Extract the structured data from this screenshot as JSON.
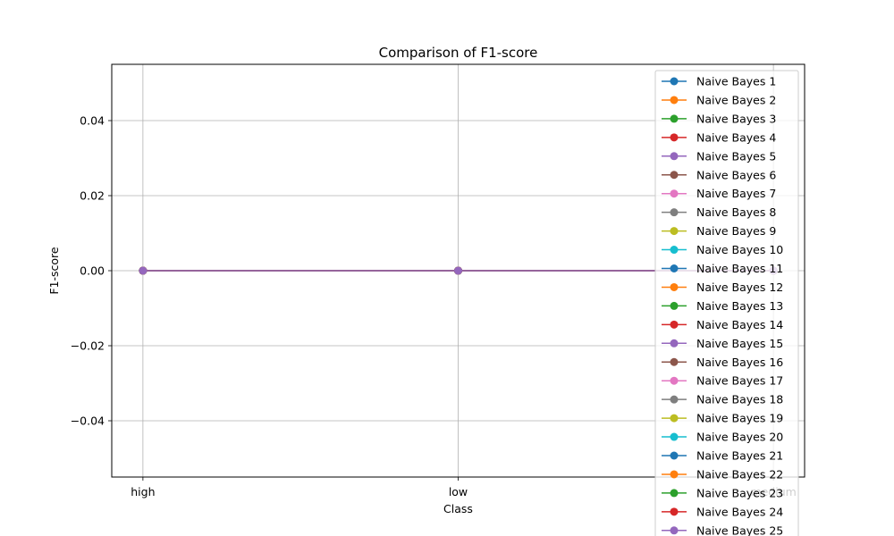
{
  "chart_data": {
    "type": "line",
    "title": "Comparison of F1-score",
    "xlabel": "Class",
    "ylabel": "F1-score",
    "categories": [
      "high",
      "low",
      "medium"
    ],
    "ylim": [
      -0.055,
      0.055
    ],
    "yticks": [
      -0.04,
      -0.02,
      0.0,
      0.02,
      0.04
    ],
    "ytick_labels": [
      "−0.04",
      "−0.02",
      "0.00",
      "0.02",
      "0.04"
    ],
    "grid": true,
    "marker": "circle",
    "legend_position": "upper-right",
    "series": [
      {
        "name": "Naive Bayes 1",
        "color": "#1f77b4",
        "values": [
          0,
          0,
          0
        ]
      },
      {
        "name": "Naive Bayes 2",
        "color": "#ff7f0e",
        "values": [
          0,
          0,
          0
        ]
      },
      {
        "name": "Naive Bayes 3",
        "color": "#2ca02c",
        "values": [
          0,
          0,
          0
        ]
      },
      {
        "name": "Naive Bayes 4",
        "color": "#d62728",
        "values": [
          0,
          0,
          0
        ]
      },
      {
        "name": "Naive Bayes 5",
        "color": "#9467bd",
        "values": [
          0,
          0,
          0
        ]
      },
      {
        "name": "Naive Bayes 6",
        "color": "#8c564b",
        "values": [
          0,
          0,
          0
        ]
      },
      {
        "name": "Naive Bayes 7",
        "color": "#e377c2",
        "values": [
          0,
          0,
          0
        ]
      },
      {
        "name": "Naive Bayes 8",
        "color": "#7f7f7f",
        "values": [
          0,
          0,
          0
        ]
      },
      {
        "name": "Naive Bayes 9",
        "color": "#bcbd22",
        "values": [
          0,
          0,
          0
        ]
      },
      {
        "name": "Naive Bayes 10",
        "color": "#17becf",
        "values": [
          0,
          0,
          0
        ]
      },
      {
        "name": "Naive Bayes 11",
        "color": "#1f77b4",
        "values": [
          0,
          0,
          0
        ]
      },
      {
        "name": "Naive Bayes 12",
        "color": "#ff7f0e",
        "values": [
          0,
          0,
          0
        ]
      },
      {
        "name": "Naive Bayes 13",
        "color": "#2ca02c",
        "values": [
          0,
          0,
          0
        ]
      },
      {
        "name": "Naive Bayes 14",
        "color": "#d62728",
        "values": [
          0,
          0,
          0
        ]
      },
      {
        "name": "Naive Bayes 15",
        "color": "#9467bd",
        "values": [
          0,
          0,
          0
        ]
      },
      {
        "name": "Naive Bayes 16",
        "color": "#8c564b",
        "values": [
          0,
          0,
          0
        ]
      },
      {
        "name": "Naive Bayes 17",
        "color": "#e377c2",
        "values": [
          0,
          0,
          0
        ]
      },
      {
        "name": "Naive Bayes 18",
        "color": "#7f7f7f",
        "values": [
          0,
          0,
          0
        ]
      },
      {
        "name": "Naive Bayes 19",
        "color": "#bcbd22",
        "values": [
          0,
          0,
          0
        ]
      },
      {
        "name": "Naive Bayes 20",
        "color": "#17becf",
        "values": [
          0,
          0,
          0
        ]
      },
      {
        "name": "Naive Bayes 21",
        "color": "#1f77b4",
        "values": [
          0,
          0,
          0
        ]
      },
      {
        "name": "Naive Bayes 22",
        "color": "#ff7f0e",
        "values": [
          0,
          0,
          0
        ]
      },
      {
        "name": "Naive Bayes 23",
        "color": "#2ca02c",
        "values": [
          0,
          0,
          0
        ]
      },
      {
        "name": "Naive Bayes 24",
        "color": "#d62728",
        "values": [
          0,
          0,
          0
        ]
      },
      {
        "name": "Naive Bayes 25",
        "color": "#9467bd",
        "values": [
          0,
          0,
          0
        ]
      }
    ]
  }
}
